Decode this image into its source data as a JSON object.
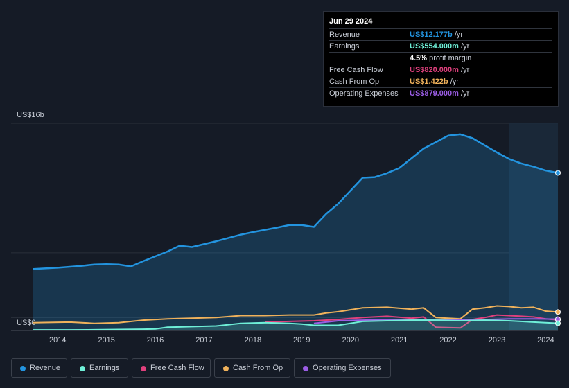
{
  "tooltip": {
    "date": "Jun 29 2024",
    "rows": [
      {
        "label": "Revenue",
        "value": "US$12.177b",
        "unit": "/yr",
        "color": "#2394df"
      },
      {
        "label": "Earnings",
        "value": "US$554.000m",
        "unit": "/yr",
        "color": "#6ff0d8"
      },
      {
        "label": "",
        "value": "4.5%",
        "unit": "profit margin",
        "color": "#ffffff"
      },
      {
        "label": "Free Cash Flow",
        "value": "US$820.000m",
        "unit": "/yr",
        "color": "#e0407d"
      },
      {
        "label": "Cash From Op",
        "value": "US$1.422b",
        "unit": "/yr",
        "color": "#f0b25b"
      },
      {
        "label": "Operating Expenses",
        "value": "US$879.000m",
        "unit": "/yr",
        "color": "#9b5de5"
      }
    ]
  },
  "chart_data": {
    "type": "area",
    "y_max_label": "US$16b",
    "y_min_label": "US$0",
    "ylim": [
      0,
      16
    ],
    "y_unit": "billions USD",
    "xlim": [
      2013.75,
      2024.5
    ],
    "x_ticks": [
      "2014",
      "2015",
      "2016",
      "2017",
      "2018",
      "2019",
      "2020",
      "2021",
      "2022",
      "2023",
      "2024"
    ],
    "forecast_start": 2023.5,
    "series": [
      {
        "name": "Revenue",
        "color": "#2394df",
        "fill": true,
        "points": [
          [
            2013.75,
            4.75
          ],
          [
            2014.25,
            4.85
          ],
          [
            2014.75,
            5.0
          ],
          [
            2015.0,
            5.1
          ],
          [
            2015.25,
            5.12
          ],
          [
            2015.5,
            5.1
          ],
          [
            2015.75,
            4.95
          ],
          [
            2016.0,
            5.35
          ],
          [
            2016.5,
            6.1
          ],
          [
            2016.75,
            6.55
          ],
          [
            2017.0,
            6.45
          ],
          [
            2017.5,
            6.9
          ],
          [
            2018.0,
            7.4
          ],
          [
            2018.25,
            7.6
          ],
          [
            2018.75,
            7.95
          ],
          [
            2019.0,
            8.15
          ],
          [
            2019.25,
            8.15
          ],
          [
            2019.5,
            8.0
          ],
          [
            2019.75,
            9.0
          ],
          [
            2020.0,
            9.8
          ],
          [
            2020.25,
            10.8
          ],
          [
            2020.5,
            11.8
          ],
          [
            2020.75,
            11.85
          ],
          [
            2021.0,
            12.15
          ],
          [
            2021.25,
            12.55
          ],
          [
            2021.5,
            13.3
          ],
          [
            2021.75,
            14.05
          ],
          [
            2022.0,
            14.55
          ],
          [
            2022.25,
            15.05
          ],
          [
            2022.5,
            15.15
          ],
          [
            2022.75,
            14.85
          ],
          [
            2023.0,
            14.3
          ],
          [
            2023.25,
            13.75
          ],
          [
            2023.5,
            13.25
          ],
          [
            2023.75,
            12.9
          ],
          [
            2024.0,
            12.65
          ],
          [
            2024.25,
            12.35
          ],
          [
            2024.5,
            12.177
          ]
        ]
      },
      {
        "name": "Cash From Op",
        "color": "#f0b25b",
        "fill": false,
        "points": [
          [
            2013.75,
            0.6
          ],
          [
            2014.5,
            0.65
          ],
          [
            2015.0,
            0.55
          ],
          [
            2015.5,
            0.6
          ],
          [
            2016.0,
            0.8
          ],
          [
            2016.5,
            0.9
          ],
          [
            2017.0,
            0.95
          ],
          [
            2017.5,
            1.0
          ],
          [
            2018.0,
            1.15
          ],
          [
            2018.5,
            1.15
          ],
          [
            2019.0,
            1.2
          ],
          [
            2019.5,
            1.2
          ],
          [
            2019.75,
            1.35
          ],
          [
            2020.0,
            1.45
          ],
          [
            2020.5,
            1.75
          ],
          [
            2021.0,
            1.8
          ],
          [
            2021.5,
            1.65
          ],
          [
            2021.75,
            1.75
          ],
          [
            2022.0,
            1.0
          ],
          [
            2022.5,
            0.9
          ],
          [
            2022.75,
            1.65
          ],
          [
            2023.0,
            1.75
          ],
          [
            2023.25,
            1.9
          ],
          [
            2023.5,
            1.85
          ],
          [
            2023.75,
            1.75
          ],
          [
            2024.0,
            1.8
          ],
          [
            2024.25,
            1.5
          ],
          [
            2024.5,
            1.422
          ]
        ]
      },
      {
        "name": "Free Cash Flow",
        "color": "#e0407d",
        "fill": false,
        "points": [
          [
            2018.5,
            0.65
          ],
          [
            2019.0,
            0.7
          ],
          [
            2019.5,
            0.75
          ],
          [
            2020.0,
            0.85
          ],
          [
            2020.5,
            1.0
          ],
          [
            2021.0,
            1.1
          ],
          [
            2021.5,
            0.95
          ],
          [
            2021.75,
            1.05
          ],
          [
            2022.0,
            0.25
          ],
          [
            2022.5,
            0.2
          ],
          [
            2022.75,
            0.85
          ],
          [
            2023.0,
            1.0
          ],
          [
            2023.25,
            1.2
          ],
          [
            2023.75,
            1.1
          ],
          [
            2024.0,
            1.05
          ],
          [
            2024.25,
            0.9
          ],
          [
            2024.5,
            0.82
          ]
        ]
      },
      {
        "name": "Operating Expenses",
        "color": "#9b5de5",
        "fill": false,
        "points": [
          [
            2019.5,
            0.55
          ],
          [
            2020.0,
            0.75
          ],
          [
            2020.5,
            0.8
          ],
          [
            2021.0,
            0.85
          ],
          [
            2021.5,
            0.85
          ],
          [
            2022.0,
            0.85
          ],
          [
            2022.5,
            0.85
          ],
          [
            2023.0,
            0.85
          ],
          [
            2023.5,
            0.9
          ],
          [
            2024.0,
            0.9
          ],
          [
            2024.5,
            0.879
          ]
        ]
      },
      {
        "name": "Earnings",
        "color": "#6ff0d8",
        "fill": true,
        "points": [
          [
            2013.75,
            0.05
          ],
          [
            2014.5,
            0.05
          ],
          [
            2015.0,
            0.06
          ],
          [
            2015.5,
            0.08
          ],
          [
            2016.0,
            0.1
          ],
          [
            2016.25,
            0.12
          ],
          [
            2016.5,
            0.25
          ],
          [
            2017.0,
            0.3
          ],
          [
            2017.5,
            0.35
          ],
          [
            2018.0,
            0.55
          ],
          [
            2018.5,
            0.6
          ],
          [
            2019.0,
            0.55
          ],
          [
            2019.25,
            0.5
          ],
          [
            2019.5,
            0.4
          ],
          [
            2020.0,
            0.4
          ],
          [
            2020.5,
            0.7
          ],
          [
            2021.0,
            0.75
          ],
          [
            2021.5,
            0.8
          ],
          [
            2022.0,
            0.8
          ],
          [
            2022.5,
            0.75
          ],
          [
            2023.0,
            0.8
          ],
          [
            2023.5,
            0.75
          ],
          [
            2024.0,
            0.65
          ],
          [
            2024.5,
            0.554
          ]
        ]
      }
    ]
  },
  "legend": [
    {
      "label": "Revenue",
      "color": "#2394df"
    },
    {
      "label": "Earnings",
      "color": "#6ff0d8"
    },
    {
      "label": "Free Cash Flow",
      "color": "#e0407d"
    },
    {
      "label": "Cash From Op",
      "color": "#f0b25b"
    },
    {
      "label": "Operating Expenses",
      "color": "#9b5de5"
    }
  ]
}
